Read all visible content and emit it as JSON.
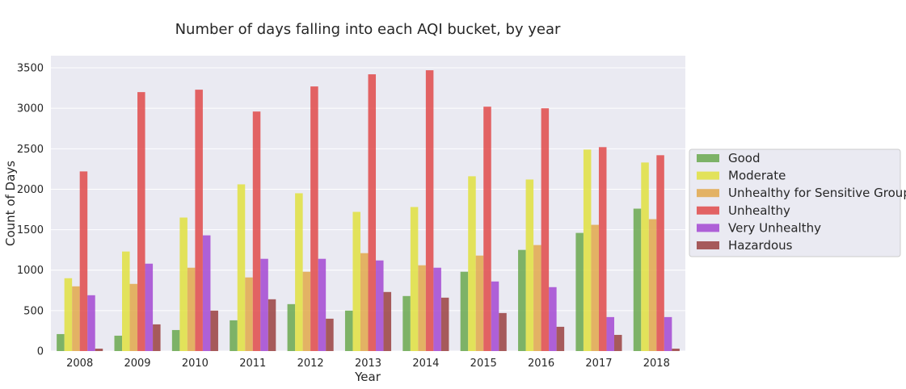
{
  "chart_data": {
    "type": "bar",
    "title": "Number of days falling into each AQI bucket, by year",
    "xlabel": "Year",
    "ylabel": "Count of Days",
    "ylim": [
      0,
      3650
    ],
    "yticks": [
      0,
      500,
      1000,
      1500,
      2000,
      2500,
      3000,
      3500
    ],
    "categories": [
      "2008",
      "2009",
      "2010",
      "2011",
      "2012",
      "2013",
      "2014",
      "2015",
      "2016",
      "2017",
      "2018"
    ],
    "grid": true,
    "legend_position": "right",
    "series": [
      {
        "name": "Good",
        "color": "#6aa84f",
        "values": [
          210,
          190,
          260,
          380,
          580,
          500,
          680,
          980,
          1250,
          1460,
          1760
        ]
      },
      {
        "name": "Moderate",
        "color": "#e1e140",
        "values": [
          900,
          1230,
          1650,
          2060,
          1950,
          1720,
          1780,
          2160,
          2120,
          2490,
          2330
        ]
      },
      {
        "name": "Unhealthy for Sensitive Groups",
        "color": "#e2a84b",
        "values": [
          800,
          830,
          1030,
          910,
          980,
          1210,
          1060,
          1180,
          1310,
          1560,
          1630
        ]
      },
      {
        "name": "Unhealthy",
        "color": "#e04a4a",
        "values": [
          2220,
          3200,
          3230,
          2960,
          3270,
          3420,
          3470,
          3020,
          3000,
          2520,
          2420
        ]
      },
      {
        "name": "Very Unhealthy",
        "color": "#a348d2",
        "values": [
          690,
          1080,
          1430,
          1140,
          1140,
          1120,
          1030,
          860,
          790,
          420,
          420
        ]
      },
      {
        "name": "Hazardous",
        "color": "#9a4141",
        "values": [
          30,
          330,
          500,
          640,
          400,
          730,
          660,
          470,
          300,
          200,
          30
        ]
      }
    ]
  }
}
